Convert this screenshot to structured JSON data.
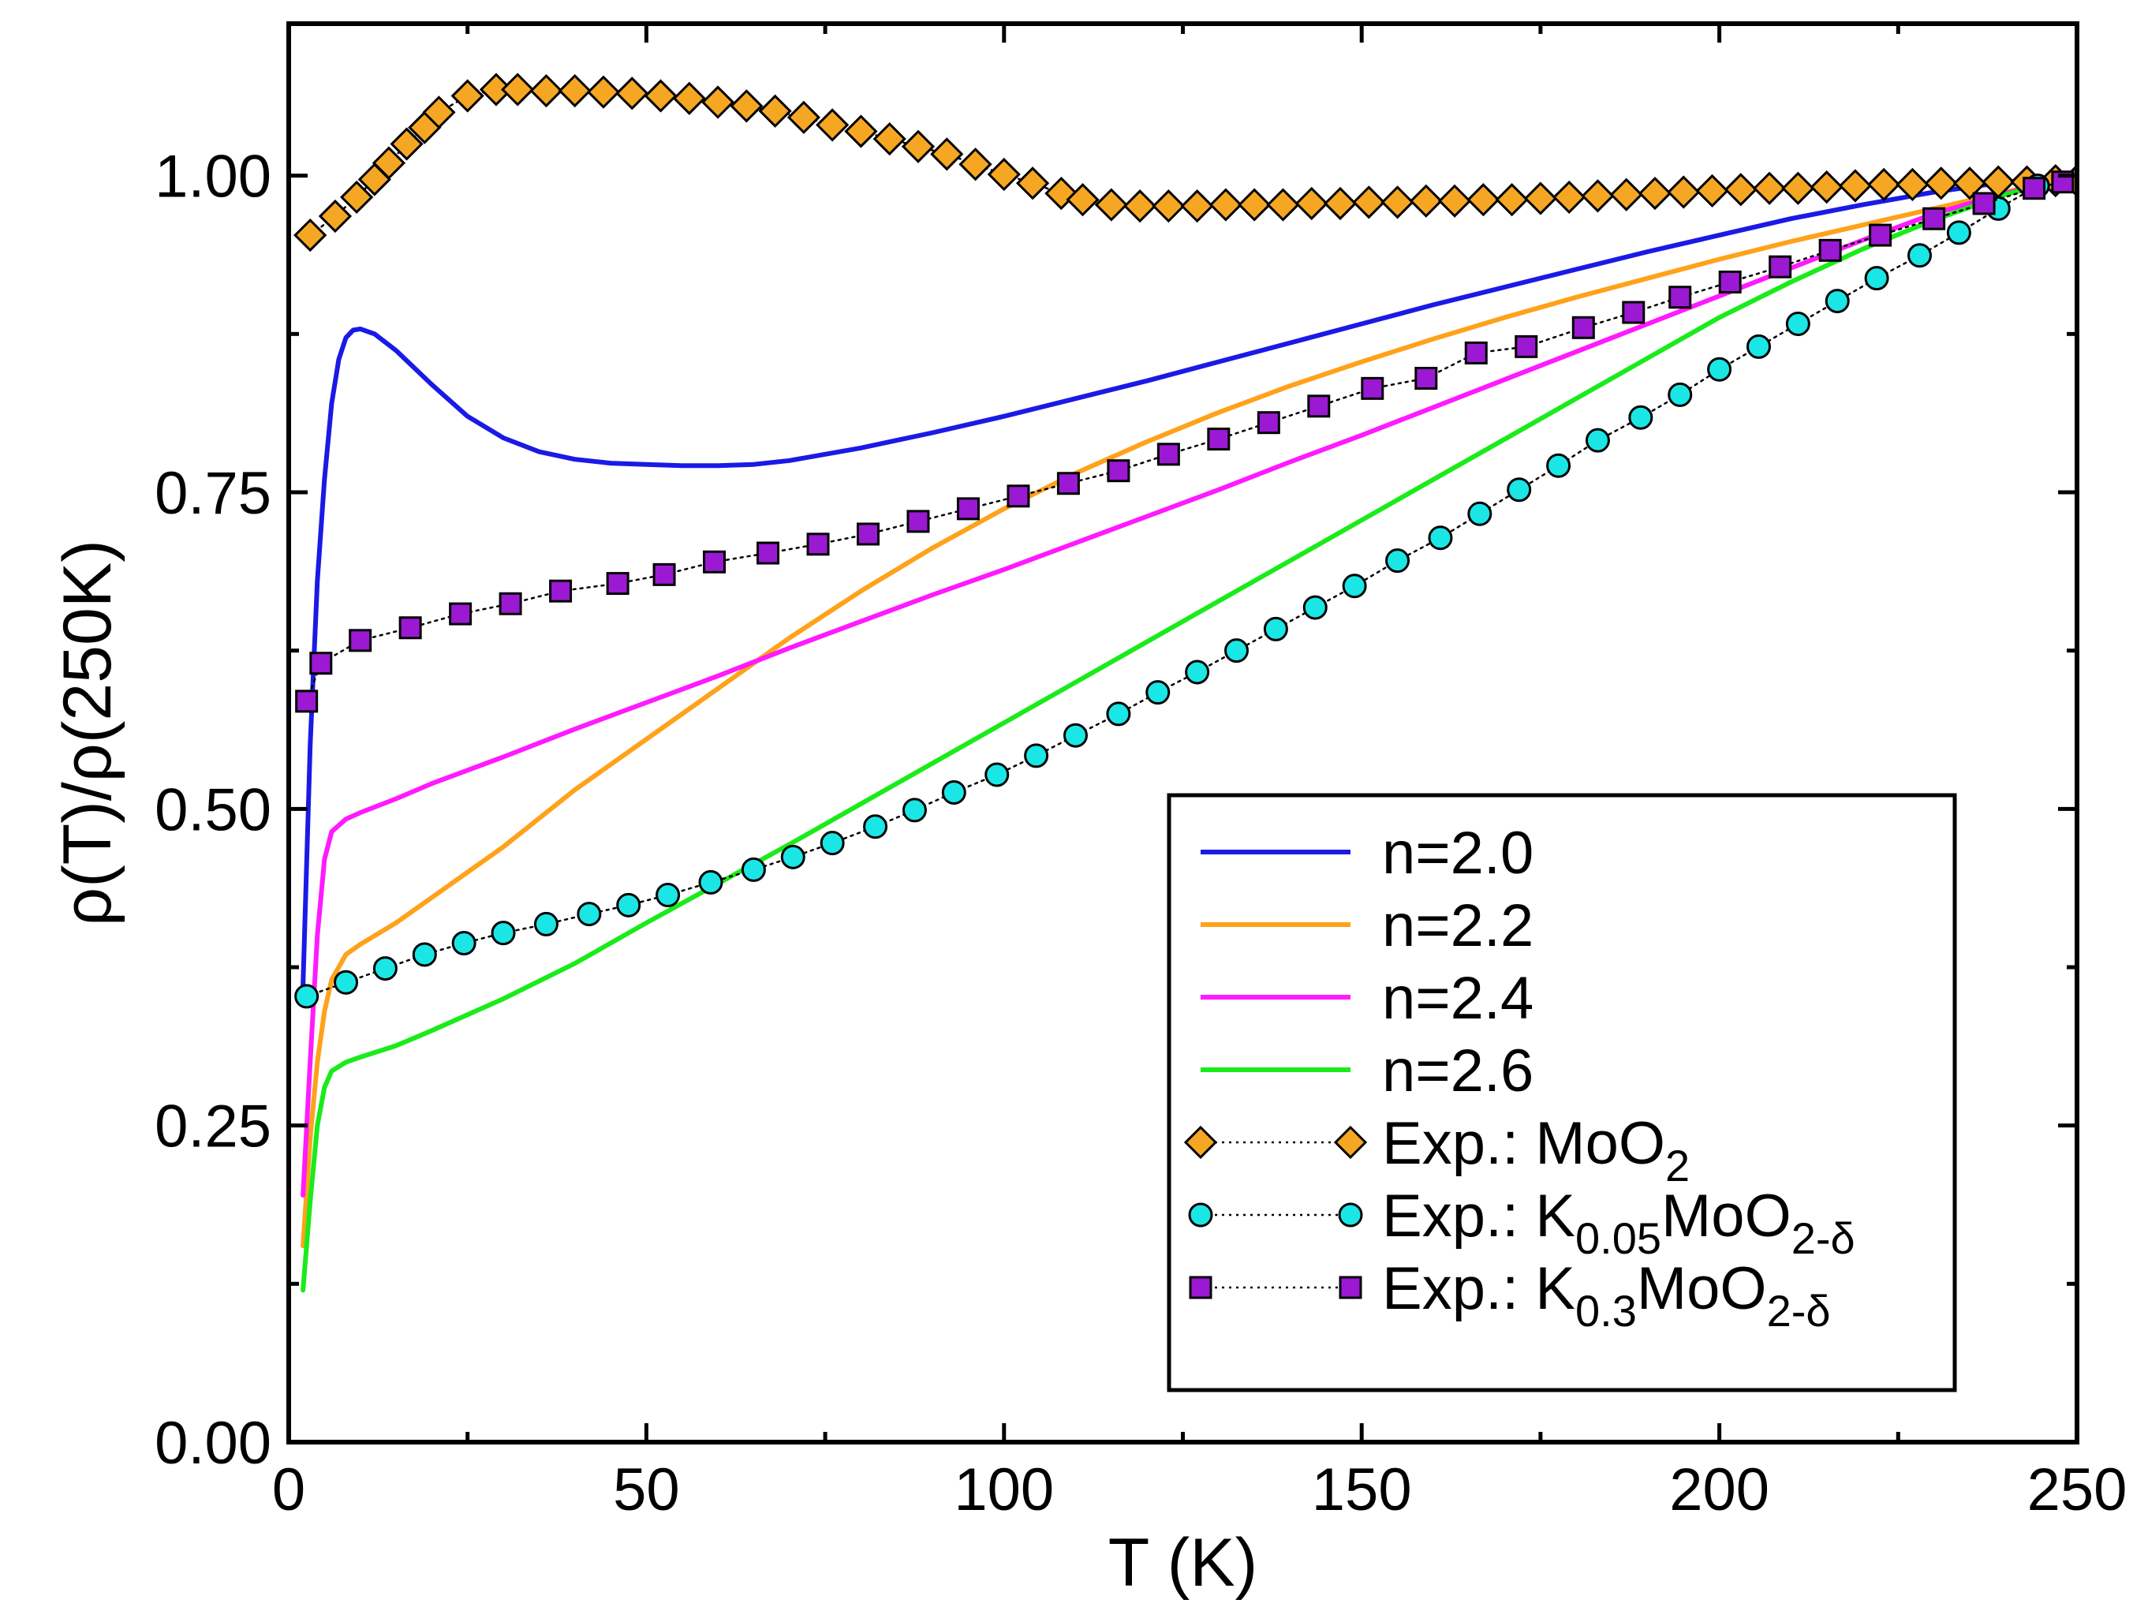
{
  "chart_data": {
    "type": "line",
    "title": "",
    "xlabel": "T (K)",
    "ylabel": "ρ(T)/ρ(250K)",
    "xlim": [
      0,
      250
    ],
    "ylim": [
      0,
      1.12
    ],
    "xticks": [
      0,
      50,
      100,
      150,
      200,
      250
    ],
    "xtick_labels": [
      "0",
      "50",
      "100",
      "150",
      "200",
      "250"
    ],
    "yticks": [
      0,
      0.25,
      0.5,
      0.75,
      1.0
    ],
    "ytick_labels": [
      "0.00",
      "0.25",
      "0.50",
      "0.75",
      "1.00"
    ],
    "grid": false,
    "legend_position": "bottom-right",
    "series": [
      {
        "name": "n=2.0",
        "legend": {
          "main": "n=2.0"
        },
        "kind": "line",
        "color": "#1a1ae6",
        "x": [
          2,
          3,
          4,
          5,
          6,
          7,
          8,
          9,
          10,
          12,
          15,
          20,
          25,
          30,
          35,
          40,
          45,
          50,
          55,
          60,
          65,
          70,
          80,
          90,
          100,
          110,
          120,
          130,
          140,
          150,
          160,
          170,
          180,
          190,
          200,
          210,
          220,
          230,
          240,
          250
        ],
        "y": [
          0.36,
          0.55,
          0.68,
          0.76,
          0.82,
          0.855,
          0.872,
          0.878,
          0.879,
          0.875,
          0.862,
          0.835,
          0.81,
          0.793,
          0.782,
          0.776,
          0.773,
          0.772,
          0.771,
          0.771,
          0.772,
          0.775,
          0.785,
          0.797,
          0.81,
          0.824,
          0.838,
          0.853,
          0.868,
          0.883,
          0.898,
          0.912,
          0.926,
          0.94,
          0.953,
          0.966,
          0.977,
          0.987,
          0.995,
          1.0
        ]
      },
      {
        "name": "n=2.2",
        "legend": {
          "main": "n=2.2"
        },
        "kind": "line",
        "color": "#ffa21a",
        "x": [
          2,
          3,
          4,
          5,
          6,
          8,
          10,
          15,
          20,
          30,
          40,
          50,
          60,
          70,
          80,
          90,
          100,
          110,
          120,
          130,
          140,
          150,
          160,
          170,
          180,
          190,
          200,
          210,
          220,
          230,
          240,
          250
        ],
        "y": [
          0.155,
          0.24,
          0.3,
          0.34,
          0.365,
          0.385,
          0.393,
          0.41,
          0.43,
          0.47,
          0.515,
          0.555,
          0.595,
          0.635,
          0.672,
          0.706,
          0.737,
          0.765,
          0.79,
          0.813,
          0.834,
          0.853,
          0.871,
          0.888,
          0.904,
          0.919,
          0.934,
          0.948,
          0.961,
          0.974,
          0.987,
          1.0
        ]
      },
      {
        "name": "n=2.4",
        "legend": {
          "main": "n=2.4"
        },
        "kind": "line",
        "color": "#ff1aff",
        "x": [
          2,
          3,
          4,
          5,
          6,
          8,
          10,
          15,
          20,
          30,
          40,
          50,
          60,
          70,
          80,
          90,
          100,
          110,
          120,
          130,
          140,
          150,
          160,
          170,
          180,
          190,
          200,
          210,
          220,
          230,
          240,
          250
        ],
        "y": [
          0.195,
          0.3,
          0.4,
          0.46,
          0.482,
          0.492,
          0.497,
          0.508,
          0.52,
          0.541,
          0.563,
          0.584,
          0.605,
          0.627,
          0.648,
          0.669,
          0.689,
          0.71,
          0.731,
          0.752,
          0.774,
          0.795,
          0.817,
          0.839,
          0.861,
          0.883,
          0.905,
          0.927,
          0.949,
          0.97,
          0.986,
          1.0
        ]
      },
      {
        "name": "n=2.6",
        "legend": {
          "main": "n=2.6"
        },
        "kind": "line",
        "color": "#1aeb1a",
        "x": [
          2,
          3,
          4,
          5,
          6,
          8,
          10,
          15,
          20,
          30,
          40,
          50,
          60,
          70,
          80,
          90,
          100,
          110,
          120,
          130,
          140,
          150,
          160,
          170,
          180,
          190,
          200,
          210,
          220,
          230,
          240,
          250
        ],
        "y": [
          0.12,
          0.19,
          0.25,
          0.28,
          0.293,
          0.3,
          0.304,
          0.313,
          0.325,
          0.35,
          0.378,
          0.41,
          0.441,
          0.472,
          0.504,
          0.536,
          0.568,
          0.6,
          0.632,
          0.664,
          0.696,
          0.728,
          0.76,
          0.792,
          0.824,
          0.856,
          0.888,
          0.916,
          0.942,
          0.965,
          0.985,
          1.0
        ]
      },
      {
        "name": "Exp.: MoO2",
        "legend": {
          "main": "Exp.: MoO",
          "sub1": "2",
          "sub2": ""
        },
        "kind": "marker",
        "marker": "diamond",
        "color": "#f5a623",
        "line_style": "dotted",
        "x": [
          3,
          6.5,
          9.5,
          12,
          14,
          16.5,
          19,
          21,
          25,
          29,
          32,
          36,
          40,
          44,
          48,
          52,
          56,
          60,
          64,
          68,
          72,
          76,
          80,
          84,
          88,
          92,
          96,
          100,
          104,
          108,
          111,
          115,
          119,
          123,
          127,
          131,
          135,
          139,
          143,
          147,
          151,
          155,
          159,
          163,
          167,
          171,
          175,
          179,
          183,
          187,
          191,
          195,
          199,
          203,
          207,
          211,
          215,
          219,
          223,
          227,
          231,
          235,
          239,
          243,
          247,
          250
        ],
        "y": [
          0.953,
          0.968,
          0.983,
          0.997,
          1.01,
          1.025,
          1.038,
          1.05,
          1.063,
          1.068,
          1.068,
          1.067,
          1.067,
          1.066,
          1.065,
          1.063,
          1.061,
          1.058,
          1.055,
          1.051,
          1.046,
          1.04,
          1.035,
          1.029,
          1.023,
          1.017,
          1.009,
          1.001,
          0.994,
          0.986,
          0.981,
          0.977,
          0.976,
          0.976,
          0.976,
          0.977,
          0.977,
          0.977,
          0.978,
          0.978,
          0.979,
          0.979,
          0.98,
          0.98,
          0.981,
          0.981,
          0.982,
          0.983,
          0.984,
          0.985,
          0.986,
          0.987,
          0.988,
          0.989,
          0.99,
          0.99,
          0.991,
          0.992,
          0.993,
          0.993,
          0.994,
          0.994,
          0.995,
          0.995,
          0.996,
          0.996
        ]
      },
      {
        "name": "Exp.: K0.05MoO2-δ",
        "legend": {
          "main": "Exp.: K",
          "sub1": "0.05",
          "mid": "MoO",
          "sub2": "2-δ"
        },
        "kind": "marker",
        "marker": "circle",
        "color": "#1ae6e6",
        "line_style": "dotted",
        "x": [
          2.5,
          8,
          13.5,
          19,
          24.5,
          30,
          36,
          42,
          47.5,
          53,
          59,
          65,
          70.5,
          76,
          82,
          87.5,
          93,
          99,
          104.5,
          110,
          116,
          121.5,
          127,
          132.5,
          138,
          143.5,
          149,
          155,
          161,
          166.5,
          172,
          177.5,
          183,
          189,
          194.5,
          200,
          205.5,
          211,
          216.5,
          222,
          228,
          233.5,
          239,
          244.5
        ],
        "y": [
          0.352,
          0.363,
          0.374,
          0.385,
          0.394,
          0.402,
          0.409,
          0.417,
          0.424,
          0.432,
          0.442,
          0.452,
          0.462,
          0.473,
          0.486,
          0.499,
          0.513,
          0.527,
          0.542,
          0.558,
          0.575,
          0.592,
          0.608,
          0.625,
          0.642,
          0.659,
          0.676,
          0.696,
          0.714,
          0.733,
          0.752,
          0.771,
          0.791,
          0.809,
          0.827,
          0.847,
          0.865,
          0.883,
          0.901,
          0.919,
          0.937,
          0.955,
          0.974,
          0.992
        ]
      },
      {
        "name": "Exp.: K0.3MoO2-δ",
        "legend": {
          "main": "Exp.: K",
          "sub1": "0.3",
          "mid": "MoO",
          "sub2": "2-δ"
        },
        "kind": "marker",
        "marker": "square",
        "color": "#9b19d2",
        "line_style": "dotted",
        "x": [
          2.5,
          4.5,
          10,
          17,
          24,
          31,
          38,
          46,
          52.5,
          59.5,
          67,
          74,
          81,
          88,
          95,
          102,
          109,
          116,
          123,
          130,
          137,
          144,
          151.5,
          159,
          166,
          173,
          181,
          188,
          194.5,
          201.5,
          208.5,
          215.5,
          222.5,
          230,
          237,
          244,
          248
        ],
        "y": [
          0.585,
          0.615,
          0.633,
          0.643,
          0.654,
          0.662,
          0.672,
          0.678,
          0.685,
          0.695,
          0.702,
          0.709,
          0.717,
          0.727,
          0.737,
          0.747,
          0.757,
          0.767,
          0.78,
          0.792,
          0.805,
          0.818,
          0.832,
          0.84,
          0.86,
          0.865,
          0.88,
          0.892,
          0.904,
          0.916,
          0.928,
          0.941,
          0.953,
          0.966,
          0.978,
          0.99,
          0.995
        ]
      }
    ]
  }
}
